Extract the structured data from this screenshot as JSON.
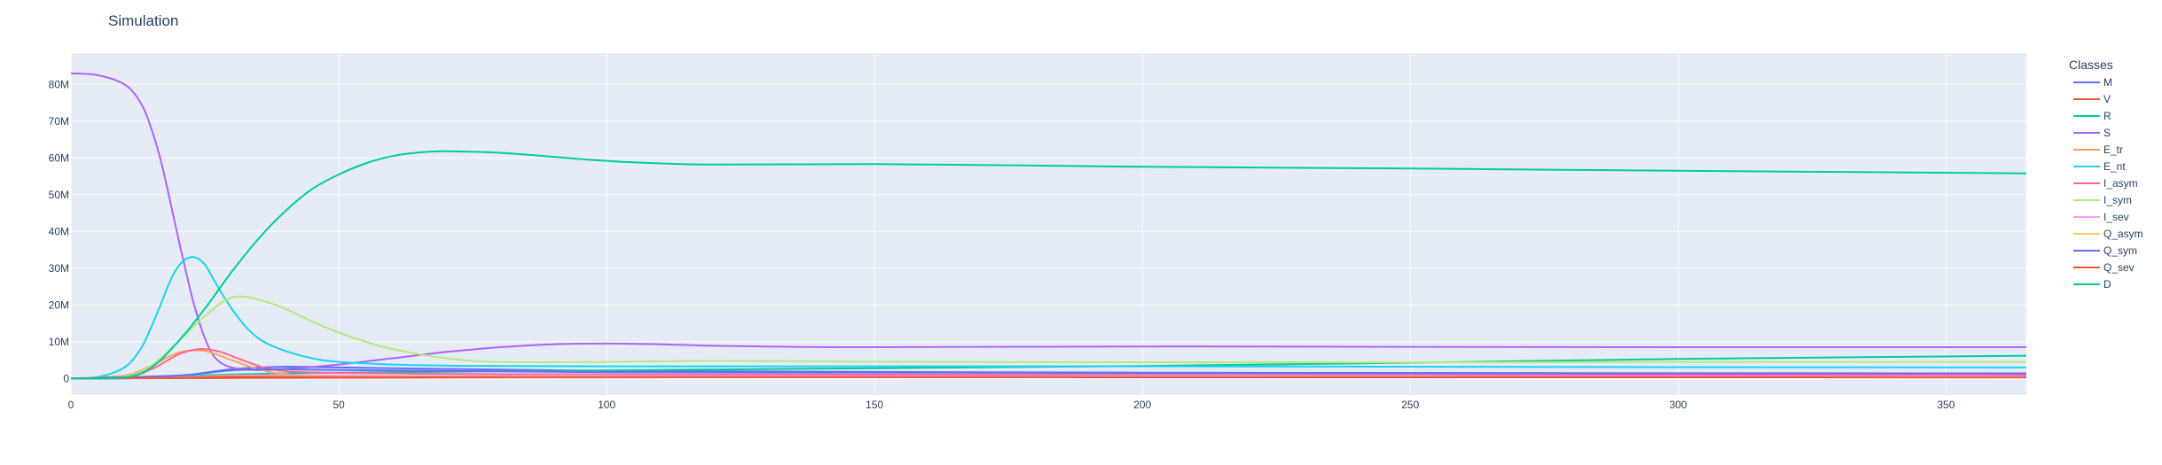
{
  "chart_data": {
    "type": "line",
    "title": "Simulation",
    "xlabel": "",
    "ylabel": "",
    "xlim": [
      0,
      365
    ],
    "ylim": [
      -4500000,
      88500000
    ],
    "xticks": [
      0,
      50,
      100,
      150,
      200,
      250,
      300,
      350
    ],
    "yticks": [
      0,
      10000000,
      20000000,
      30000000,
      40000000,
      50000000,
      60000000,
      70000000,
      80000000
    ],
    "ytick_labels": [
      "0",
      "10M",
      "20M",
      "30M",
      "40M",
      "50M",
      "60M",
      "70M",
      "80M"
    ],
    "grid": true,
    "legend": {
      "title": "Classes",
      "placement": "right"
    },
    "series": [
      {
        "name": "M",
        "color": "#636efa",
        "points": [
          [
            0,
            0
          ],
          [
            10,
            50000
          ],
          [
            20,
            600000
          ],
          [
            30,
            2500000
          ],
          [
            40,
            3200000
          ],
          [
            50,
            3000000
          ],
          [
            75,
            2500000
          ],
          [
            100,
            2100000
          ],
          [
            150,
            1800000
          ],
          [
            200,
            1600000
          ],
          [
            250,
            1500000
          ],
          [
            300,
            1400000
          ],
          [
            365,
            1300000
          ]
        ]
      },
      {
        "name": "V",
        "color": "#EF553B",
        "points": [
          [
            0,
            0
          ],
          [
            50,
            200000
          ],
          [
            100,
            300000
          ],
          [
            200,
            400000
          ],
          [
            365,
            500000
          ]
        ]
      },
      {
        "name": "R",
        "color": "#00cc96",
        "points": [
          [
            0,
            0
          ],
          [
            10,
            50000
          ],
          [
            20,
            500000
          ],
          [
            30,
            1100000
          ],
          [
            50,
            1600000
          ],
          [
            100,
            2200000
          ],
          [
            150,
            2800000
          ],
          [
            200,
            3400000
          ],
          [
            250,
            4300000
          ],
          [
            300,
            5300000
          ],
          [
            365,
            6200000
          ]
        ]
      },
      {
        "name": "S",
        "color": "#ab63fa",
        "points": [
          [
            0,
            83000000
          ],
          [
            5,
            82500000
          ],
          [
            10,
            80000000
          ],
          [
            13,
            75000000
          ],
          [
            15,
            68000000
          ],
          [
            17,
            58000000
          ],
          [
            19,
            45000000
          ],
          [
            21,
            32000000
          ],
          [
            23,
            20000000
          ],
          [
            25,
            11000000
          ],
          [
            27,
            5500000
          ],
          [
            30,
            3000000
          ],
          [
            35,
            2300000
          ],
          [
            40,
            2600000
          ],
          [
            50,
            3800000
          ],
          [
            60,
            5500000
          ],
          [
            70,
            7200000
          ],
          [
            80,
            8500000
          ],
          [
            90,
            9300000
          ],
          [
            100,
            9500000
          ],
          [
            110,
            9300000
          ],
          [
            120,
            8900000
          ],
          [
            135,
            8600000
          ],
          [
            150,
            8500000
          ],
          [
            200,
            8700000
          ],
          [
            250,
            8600000
          ],
          [
            300,
            8500000
          ],
          [
            365,
            8500000
          ]
        ]
      },
      {
        "name": "E_tr",
        "color": "#FFA15A",
        "points": [
          [
            0,
            0
          ],
          [
            10,
            800000
          ],
          [
            15,
            3500000
          ],
          [
            20,
            7000000
          ],
          [
            25,
            7500000
          ],
          [
            30,
            5000000
          ],
          [
            35,
            2500000
          ],
          [
            40,
            1200000
          ],
          [
            50,
            700000
          ],
          [
            100,
            500000
          ],
          [
            200,
            450000
          ],
          [
            365,
            400000
          ]
        ]
      },
      {
        "name": "E_nt",
        "color": "#19d3f3",
        "points": [
          [
            0,
            0
          ],
          [
            5,
            400000
          ],
          [
            10,
            3000000
          ],
          [
            13,
            8000000
          ],
          [
            15,
            14000000
          ],
          [
            17,
            21000000
          ],
          [
            19,
            28000000
          ],
          [
            21,
            32000000
          ],
          [
            23,
            33000000
          ],
          [
            25,
            31000000
          ],
          [
            27,
            26000000
          ],
          [
            30,
            19000000
          ],
          [
            33,
            13500000
          ],
          [
            36,
            10000000
          ],
          [
            40,
            7500000
          ],
          [
            45,
            5500000
          ],
          [
            50,
            4500000
          ],
          [
            60,
            3800000
          ],
          [
            70,
            3500000
          ],
          [
            80,
            3400000
          ],
          [
            100,
            3300000
          ],
          [
            150,
            3300000
          ],
          [
            200,
            3300000
          ],
          [
            250,
            3200000
          ],
          [
            300,
            3100000
          ],
          [
            365,
            3000000
          ]
        ]
      },
      {
        "name": "I_asym",
        "color": "#FF6692",
        "points": [
          [
            0,
            0
          ],
          [
            10,
            300000
          ],
          [
            15,
            2500000
          ],
          [
            20,
            6500000
          ],
          [
            23,
            7800000
          ],
          [
            25,
            8000000
          ],
          [
            28,
            7200000
          ],
          [
            32,
            5000000
          ],
          [
            36,
            3000000
          ],
          [
            40,
            2000000
          ],
          [
            50,
            1500000
          ],
          [
            75,
            1200000
          ],
          [
            100,
            1100000
          ],
          [
            200,
            1000000
          ],
          [
            365,
            900000
          ]
        ]
      },
      {
        "name": "I_sym",
        "color": "#B6E880",
        "points": [
          [
            0,
            0
          ],
          [
            10,
            500000
          ],
          [
            15,
            3500000
          ],
          [
            20,
            10000000
          ],
          [
            25,
            17000000
          ],
          [
            28,
            20500000
          ],
          [
            30,
            22000000
          ],
          [
            32,
            22300000
          ],
          [
            35,
            21500000
          ],
          [
            40,
            19000000
          ],
          [
            45,
            15500000
          ],
          [
            50,
            12500000
          ],
          [
            55,
            10000000
          ],
          [
            60,
            8000000
          ],
          [
            70,
            5500000
          ],
          [
            80,
            4500000
          ],
          [
            100,
            4500000
          ],
          [
            120,
            4800000
          ],
          [
            150,
            4600000
          ],
          [
            200,
            4400000
          ],
          [
            250,
            4400000
          ],
          [
            300,
            4500000
          ],
          [
            365,
            4500000
          ]
        ]
      },
      {
        "name": "I_sev",
        "color": "#FF97FF",
        "points": [
          [
            0,
            0
          ],
          [
            20,
            300000
          ],
          [
            30,
            800000
          ],
          [
            40,
            900000
          ],
          [
            60,
            700000
          ],
          [
            100,
            600000
          ],
          [
            365,
            500000
          ]
        ]
      },
      {
        "name": "Q_asym",
        "color": "#FECB52",
        "points": [
          [
            0,
            0
          ],
          [
            20,
            200000
          ],
          [
            30,
            600000
          ],
          [
            50,
            500000
          ],
          [
            100,
            400000
          ],
          [
            365,
            300000
          ]
        ]
      },
      {
        "name": "Q_sym",
        "color": "#636efa",
        "points": [
          [
            0,
            0
          ],
          [
            20,
            800000
          ],
          [
            30,
            2200000
          ],
          [
            40,
            2500000
          ],
          [
            50,
            2300000
          ],
          [
            100,
            1700000
          ],
          [
            200,
            1500000
          ],
          [
            365,
            1400000
          ]
        ]
      },
      {
        "name": "Q_sev",
        "color": "#EF553B",
        "points": [
          [
            0,
            0
          ],
          [
            20,
            200000
          ],
          [
            30,
            500000
          ],
          [
            50,
            400000
          ],
          [
            100,
            350000
          ],
          [
            365,
            300000
          ]
        ]
      },
      {
        "name": "D",
        "color": "#00cc96",
        "points": [
          [
            0,
            0
          ],
          [
            10,
            300000
          ],
          [
            15,
            3000000
          ],
          [
            20,
            10000000
          ],
          [
            25,
            19000000
          ],
          [
            30,
            29000000
          ],
          [
            35,
            38000000
          ],
          [
            40,
            45500000
          ],
          [
            45,
            51500000
          ],
          [
            50,
            55500000
          ],
          [
            55,
            58500000
          ],
          [
            60,
            60500000
          ],
          [
            65,
            61500000
          ],
          [
            70,
            61800000
          ],
          [
            80,
            61400000
          ],
          [
            90,
            60300000
          ],
          [
            100,
            59200000
          ],
          [
            110,
            58500000
          ],
          [
            120,
            58200000
          ],
          [
            150,
            58300000
          ],
          [
            175,
            58000000
          ],
          [
            200,
            57600000
          ],
          [
            250,
            57100000
          ],
          [
            300,
            56500000
          ],
          [
            365,
            55800000
          ]
        ]
      }
    ]
  }
}
